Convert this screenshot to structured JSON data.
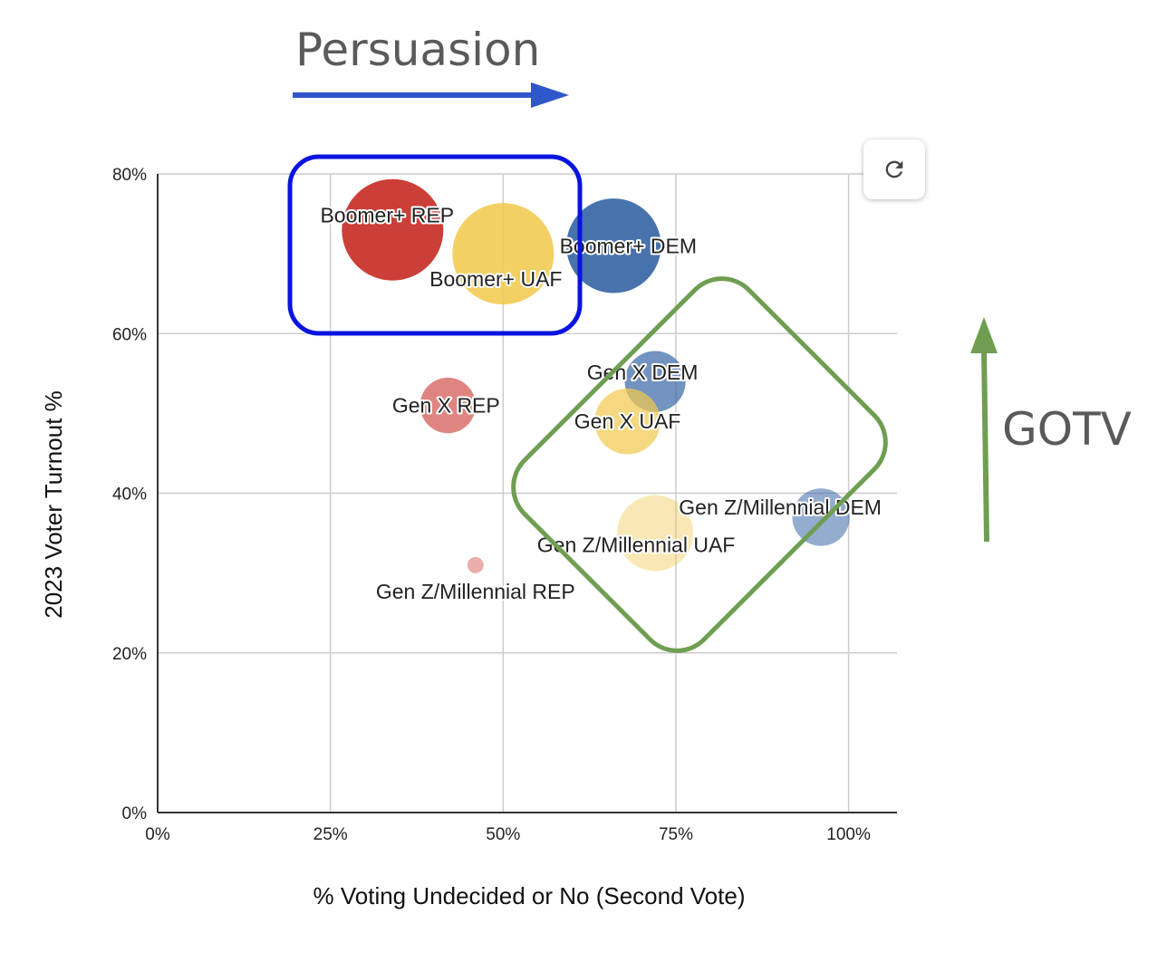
{
  "annotations": {
    "persuasion": "Persuasion",
    "gotv": "GOTV"
  },
  "colors": {
    "rep": "#c9342d",
    "uaf": "#f1c94f",
    "dem": "#3d6aa8",
    "persuasion_box": "#0a14e0",
    "persuasion_arrow": "#2f57c9",
    "gotv": "#6f9e52",
    "grid": "#cccccc",
    "axis": "#333333"
  },
  "controls": {
    "refresh_icon": "refresh-icon"
  },
  "chart_data": {
    "type": "bubble",
    "xlabel": "% Voting Undecided or No (Second Vote)",
    "ylabel": "2023 Voter Turnout %",
    "xlim": [
      0,
      1.07
    ],
    "ylim": [
      0,
      0.8
    ],
    "x_ticks": [
      {
        "value": 0,
        "label": "0%"
      },
      {
        "value": 0.25,
        "label": "25%"
      },
      {
        "value": 0.5,
        "label": "50%"
      },
      {
        "value": 0.75,
        "label": "75%"
      },
      {
        "value": 1.0,
        "label": "100%"
      }
    ],
    "y_ticks": [
      {
        "value": 0,
        "label": "0%"
      },
      {
        "value": 0.2,
        "label": "20%"
      },
      {
        "value": 0.4,
        "label": "40%"
      },
      {
        "value": 0.6,
        "label": "60%"
      },
      {
        "value": 0.8,
        "label": "80%"
      }
    ],
    "grid": true,
    "points": [
      {
        "label": "Boomer+ REP",
        "party": "rep",
        "x": 0.34,
        "y": 0.73,
        "size": 1.0,
        "opacity": 0.95
      },
      {
        "label": "Boomer+ UAF",
        "party": "uaf",
        "x": 0.5,
        "y": 0.7,
        "size": 1.0,
        "opacity": 0.88
      },
      {
        "label": "Boomer+ DEM",
        "party": "dem",
        "x": 0.66,
        "y": 0.71,
        "size": 0.87,
        "opacity": 0.95
      },
      {
        "label": "Gen X DEM",
        "party": "dem",
        "x": 0.72,
        "y": 0.54,
        "size": 0.36,
        "opacity": 0.72
      },
      {
        "label": "Gen X REP",
        "party": "rep",
        "x": 0.42,
        "y": 0.51,
        "size": 0.3,
        "opacity": 0.6
      },
      {
        "label": "Gen X UAF",
        "party": "uaf",
        "x": 0.68,
        "y": 0.49,
        "size": 0.42,
        "opacity": 0.72
      },
      {
        "label": "Gen Z/Millennial DEM",
        "party": "dem",
        "x": 0.96,
        "y": 0.37,
        "size": 0.32,
        "opacity": 0.55
      },
      {
        "label": "Gen Z/Millennial UAF",
        "party": "uaf",
        "x": 0.72,
        "y": 0.35,
        "size": 0.56,
        "opacity": 0.42
      },
      {
        "label": "Gen Z/Millennial REP",
        "party": "rep",
        "x": 0.46,
        "y": 0.31,
        "size": 0.013,
        "opacity": 0.4
      }
    ]
  }
}
